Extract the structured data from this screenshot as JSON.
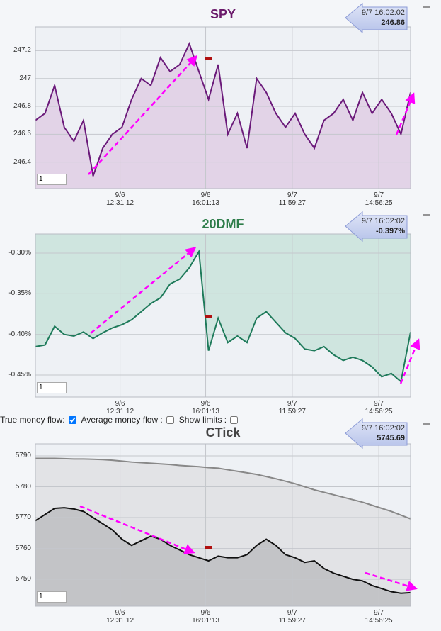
{
  "chart_data": [
    {
      "type": "line",
      "title": "SPY",
      "title_color": "#6b1a6b",
      "latest_time": "9/7 16:02:02",
      "latest_value": "246.86",
      "range_input": "1",
      "x": [
        0,
        1,
        2,
        3,
        4,
        5,
        6,
        7,
        8,
        9,
        10,
        11,
        12,
        13,
        14,
        15,
        16,
        17,
        18,
        19,
        20,
        21,
        22,
        23,
        24,
        25,
        26,
        27,
        28,
        29,
        30,
        31,
        32,
        33,
        34,
        35,
        36,
        37,
        38,
        39
      ],
      "xlim": [
        0,
        39
      ],
      "xticks": [
        {
          "value": 8.8,
          "label": "9/6 12:31:12"
        },
        {
          "value": 17.7,
          "label": "9/6 16:01:13"
        },
        {
          "value": 26.7,
          "label": "9/7 11:59:27"
        },
        {
          "value": 35.7,
          "label": "9/7 14:56:25"
        }
      ],
      "ylim": [
        246.21,
        247.37
      ],
      "yticks": [
        246.4,
        246.6,
        246.8,
        247,
        247.2
      ],
      "grid": true,
      "series": [
        {
          "color": "#6b1a7a",
          "fill_color": "#e2d3e7",
          "fill": "below",
          "values": [
            246.7,
            246.75,
            246.95,
            246.65,
            246.55,
            246.7,
            246.3,
            246.5,
            246.6,
            246.65,
            246.85,
            247.0,
            246.95,
            247.15,
            247.05,
            247.1,
            247.25,
            247.05,
            246.85,
            247.1,
            246.6,
            246.75,
            246.5,
            247.0,
            246.9,
            246.75,
            246.65,
            246.75,
            246.6,
            246.5,
            246.7,
            246.75,
            246.85,
            246.7,
            246.9,
            246.75,
            246.85,
            246.75,
            246.6,
            246.9
          ]
        }
      ]
    },
    {
      "type": "line",
      "title": "20DMF",
      "title_color": "#2e7d4a",
      "latest_time": "9/7 16:02:02",
      "latest_value": "-0.397%",
      "range_input": "1",
      "x": [
        0,
        1,
        2,
        3,
        4,
        5,
        6,
        7,
        8,
        9,
        10,
        11,
        12,
        13,
        14,
        15,
        16,
        17,
        18,
        19,
        20,
        21,
        22,
        23,
        24,
        25,
        26,
        27,
        28,
        29,
        30,
        31,
        32,
        33,
        34,
        35,
        36,
        37,
        38,
        39
      ],
      "xlim": [
        0,
        39
      ],
      "xticks": [
        {
          "value": 8.8,
          "label": "9/6 12:31:12"
        },
        {
          "value": 17.7,
          "label": "9/6 16:01:13"
        },
        {
          "value": 26.7,
          "label": "9/7 11:59:27"
        },
        {
          "value": 35.7,
          "label": "9/7 14:56:25"
        }
      ],
      "ylim": [
        -0.477,
        -0.2764
      ],
      "yticks": [
        {
          "value": -0.45,
          "label": "-0.45%"
        },
        {
          "value": -0.4,
          "label": "-0.40%"
        },
        {
          "value": -0.35,
          "label": "-0.35%"
        },
        {
          "value": -0.3,
          "label": "-0.30%"
        }
      ],
      "grid": true,
      "series": [
        {
          "color": "#1e7a5a",
          "fill_color": "#cfe5df",
          "fill": "above",
          "values": [
            -0.415,
            -0.413,
            -0.39,
            -0.4,
            -0.402,
            -0.397,
            -0.405,
            -0.398,
            -0.392,
            -0.388,
            -0.382,
            -0.372,
            -0.362,
            -0.355,
            -0.338,
            -0.332,
            -0.318,
            -0.298,
            -0.42,
            -0.38,
            -0.41,
            -0.402,
            -0.41,
            -0.38,
            -0.372,
            -0.385,
            -0.398,
            -0.405,
            -0.418,
            -0.42,
            -0.415,
            -0.425,
            -0.432,
            -0.428,
            -0.432,
            -0.44,
            -0.452,
            -0.448,
            -0.458,
            -0.397
          ]
        }
      ],
      "controls": [
        {
          "label": "True money flow:",
          "checked": true
        },
        {
          "label": "Average money flow :",
          "checked": false
        },
        {
          "label": "Show limits :",
          "checked": false
        }
      ]
    },
    {
      "type": "line",
      "title": "CTick",
      "title_color": "#444444",
      "latest_time": "9/7 16:02:02",
      "latest_value": "5745.69",
      "range_input": "1",
      "x": [
        0,
        1,
        2,
        3,
        4,
        5,
        6,
        7,
        8,
        9,
        10,
        11,
        12,
        13,
        14,
        15,
        16,
        17,
        18,
        19,
        20,
        21,
        22,
        23,
        24,
        25,
        26,
        27,
        28,
        29,
        30,
        31,
        32,
        33,
        34,
        35,
        36,
        37,
        38,
        39
      ],
      "xlim": [
        0,
        39
      ],
      "xticks": [
        {
          "value": 8.8,
          "label": "9/6 12:31:12"
        },
        {
          "value": 17.7,
          "label": "9/6 16:01:13"
        },
        {
          "value": 26.7,
          "label": "9/7 11:59:27"
        },
        {
          "value": 35.7,
          "label": "9/7 14:56:25"
        }
      ],
      "ylim": [
        5741.3,
        5793.9
      ],
      "yticks": [
        5750,
        5760,
        5770,
        5780,
        5790
      ],
      "grid": true,
      "series": [
        {
          "color": "#888888",
          "fill_color": "#e2e3e6",
          "fill": "below",
          "values": [
            5789.2,
            5789.2,
            5789.2,
            5789.1,
            5789,
            5789,
            5788.9,
            5788.8,
            5788.6,
            5788.3,
            5788,
            5787.8,
            5787.6,
            5787.4,
            5787.2,
            5786.9,
            5786.7,
            5786.5,
            5786.2,
            5786,
            5785.5,
            5785,
            5784.5,
            5784,
            5783.3,
            5782.6,
            5781.8,
            5781,
            5780,
            5779,
            5778.2,
            5777.4,
            5776.6,
            5775.8,
            5775,
            5774,
            5773,
            5772,
            5770.8,
            5769.6
          ]
        },
        {
          "color": "#111111",
          "fill_color": "#c3c4c7",
          "fill": "below",
          "values": [
            5769,
            5771,
            5773,
            5773.2,
            5772.8,
            5772,
            5770,
            5768,
            5766,
            5763,
            5761,
            5762.5,
            5764,
            5763,
            5761,
            5759.5,
            5758,
            5757,
            5756,
            5757.5,
            5757,
            5757,
            5758,
            5761,
            5763,
            5761,
            5758,
            5757,
            5755.5,
            5756,
            5753.5,
            5752,
            5751,
            5750,
            5749.5,
            5748,
            5747,
            5746,
            5745.5,
            5745.7
          ]
        }
      ]
    }
  ]
}
